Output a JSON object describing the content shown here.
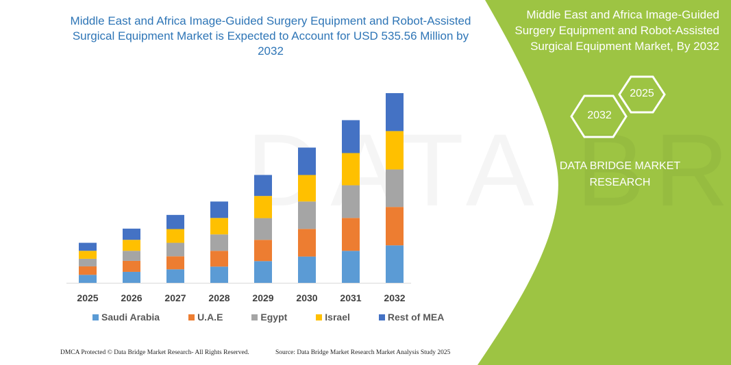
{
  "header": {
    "title": "Middle East and Africa Image-Guided Surgery Equipment and Robot-Assisted Surgical Equipment Market is Expected to Account for USD 535.56 Million by 2032"
  },
  "side_panel": {
    "title": "Middle East and Africa Image-Guided Surgery Equipment and Robot-Assisted Surgical Equipment Market, By 2032",
    "hex_left": "2032",
    "hex_right": "2025",
    "brand": "DATA BRIDGE MARKET RESEARCH",
    "panel_color": "#9dc443"
  },
  "footer": {
    "copyright": "DMCA Protected © Data Bridge Market Research-  All Rights Reserved.",
    "source": "Source: Data Bridge Market Research  Market Analysis Study 2025"
  },
  "chart_data": {
    "type": "bar",
    "stacked": true,
    "categories": [
      "2025",
      "2026",
      "2027",
      "2028",
      "2029",
      "2030",
      "2031",
      "2032"
    ],
    "series": [
      {
        "name": "Saudi Arabia",
        "color": "#5b9bd5",
        "values": [
          22.6,
          31.0,
          38.1,
          45.8,
          61.3,
          74.2,
          90.3,
          105.8
        ]
      },
      {
        "name": "U.A.E",
        "color": "#ed7d31",
        "values": [
          23.9,
          31.0,
          36.8,
          44.5,
          60.0,
          78.0,
          92.9,
          108.4
        ]
      },
      {
        "name": "Egypt",
        "color": "#a5a5a5",
        "values": [
          21.3,
          28.4,
          38.1,
          46.4,
          61.3,
          77.4,
          92.2,
          105.8
        ]
      },
      {
        "name": "Israel",
        "color": "#ffc000",
        "values": [
          22.6,
          31.0,
          38.7,
          46.4,
          62.6,
          74.8,
          90.9,
          108.4
        ]
      },
      {
        "name": "Rest of MEA",
        "color": "#4472c4",
        "values": [
          22.6,
          31.6,
          40.0,
          46.4,
          59.3,
          77.4,
          92.9,
          107.1
        ]
      }
    ],
    "ylim": [
      0,
      540
    ],
    "grid": false,
    "y_axis_shown": false,
    "legend": "bottom"
  }
}
